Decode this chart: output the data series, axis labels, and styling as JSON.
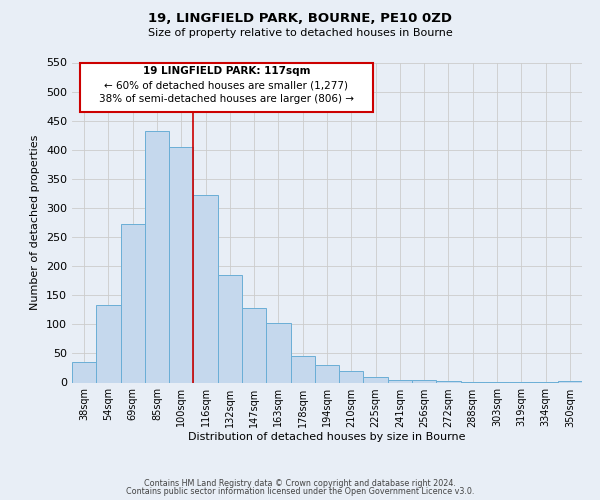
{
  "title_line1": "19, LINGFIELD PARK, BOURNE, PE10 0ZD",
  "title_line2": "Size of property relative to detached houses in Bourne",
  "xlabel": "Distribution of detached houses by size in Bourne",
  "ylabel": "Number of detached properties",
  "bar_labels": [
    "38sqm",
    "54sqm",
    "69sqm",
    "85sqm",
    "100sqm",
    "116sqm",
    "132sqm",
    "147sqm",
    "163sqm",
    "178sqm",
    "194sqm",
    "210sqm",
    "225sqm",
    "241sqm",
    "256sqm",
    "272sqm",
    "288sqm",
    "303sqm",
    "319sqm",
    "334sqm",
    "350sqm"
  ],
  "bar_values": [
    35,
    133,
    273,
    432,
    405,
    323,
    184,
    128,
    103,
    46,
    30,
    20,
    9,
    5,
    4,
    2,
    1,
    1,
    1,
    1,
    3
  ],
  "bar_color": "#c5d8ed",
  "bar_edge_color": "#6aaed6",
  "vline_color": "#cc0000",
  "ylim": [
    0,
    550
  ],
  "yticks": [
    0,
    50,
    100,
    150,
    200,
    250,
    300,
    350,
    400,
    450,
    500,
    550
  ],
  "annotation_title": "19 LINGFIELD PARK: 117sqm",
  "annotation_line2": "← 60% of detached houses are smaller (1,277)",
  "annotation_line3": "38% of semi-detached houses are larger (806) →",
  "annotation_box_color": "#cc0000",
  "footer_line1": "Contains HM Land Registry data © Crown copyright and database right 2024.",
  "footer_line2": "Contains public sector information licensed under the Open Government Licence v3.0.",
  "grid_color": "#cccccc",
  "background_color": "#e8eef6"
}
